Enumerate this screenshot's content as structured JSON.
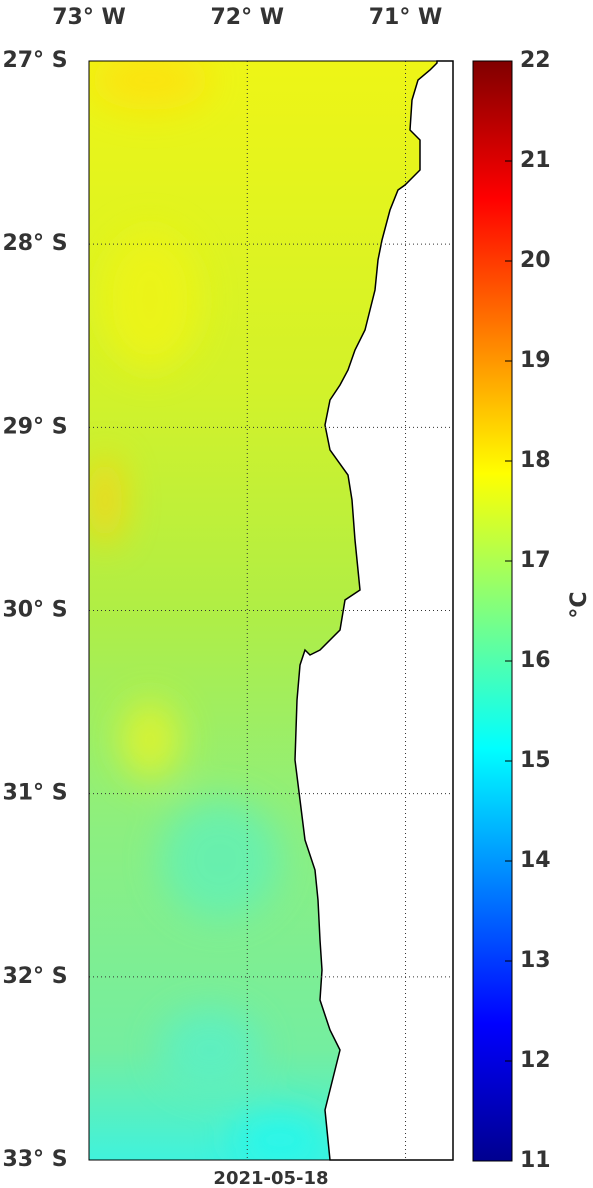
{
  "map": {
    "lonlim": [
      -73,
      -70.7
    ],
    "latlim": [
      -33,
      -27
    ],
    "lon_ticks": [
      {
        "value": -73,
        "label": "73° W"
      },
      {
        "value": -72,
        "label": "72° W"
      },
      {
        "value": -71,
        "label": "71° W"
      }
    ],
    "lat_ticks": [
      {
        "value": -27,
        "label": "27° S"
      },
      {
        "value": -28,
        "label": "28° S"
      },
      {
        "value": -29,
        "label": "29° S"
      },
      {
        "value": -30,
        "label": "30° S"
      },
      {
        "value": -31,
        "label": "31° S"
      },
      {
        "value": -32,
        "label": "32° S"
      },
      {
        "value": -33,
        "label": "33° S"
      }
    ],
    "date": "2021-05-18"
  },
  "colorbar": {
    "lim": [
      11,
      22
    ],
    "ticks": [
      11,
      12,
      13,
      14,
      15,
      16,
      17,
      18,
      19,
      20,
      21,
      22
    ],
    "label": "°C"
  }
}
